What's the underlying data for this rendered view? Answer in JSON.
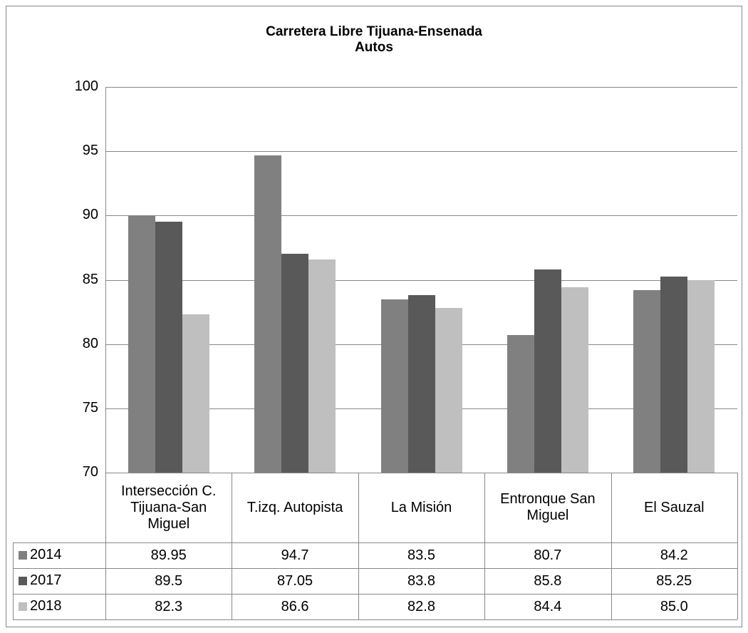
{
  "chart_data": {
    "type": "bar",
    "title": "Carretera Libre Tijuana-Ensenada",
    "subtitle": "Autos",
    "categories": [
      "Intersección C. Tijuana-San Miguel",
      "T.izq. Autopista",
      "La Misión",
      "Entronque San Miguel",
      "El Sauzal"
    ],
    "series": [
      {
        "name": "2014",
        "color": "#808080",
        "values": [
          89.95,
          94.7,
          83.5,
          80.7,
          84.2
        ],
        "value_labels": [
          "89.95",
          "94.7",
          "83.5",
          "80.7",
          "84.2"
        ]
      },
      {
        "name": "2017",
        "color": "#595959",
        "values": [
          89.5,
          87.05,
          83.8,
          85.8,
          85.25
        ],
        "value_labels": [
          "89.5",
          "87.05",
          "83.8",
          "85.8",
          "85.25"
        ]
      },
      {
        "name": "2018",
        "color": "#bfbfbf",
        "values": [
          82.3,
          86.6,
          82.8,
          84.4,
          85.0
        ],
        "value_labels": [
          "82.3",
          "86.6",
          "82.8",
          "84.4",
          "85.0"
        ]
      }
    ],
    "ylim": [
      70,
      100
    ],
    "yticks": [
      70,
      75,
      80,
      85,
      90,
      95,
      100
    ],
    "grid": true
  }
}
